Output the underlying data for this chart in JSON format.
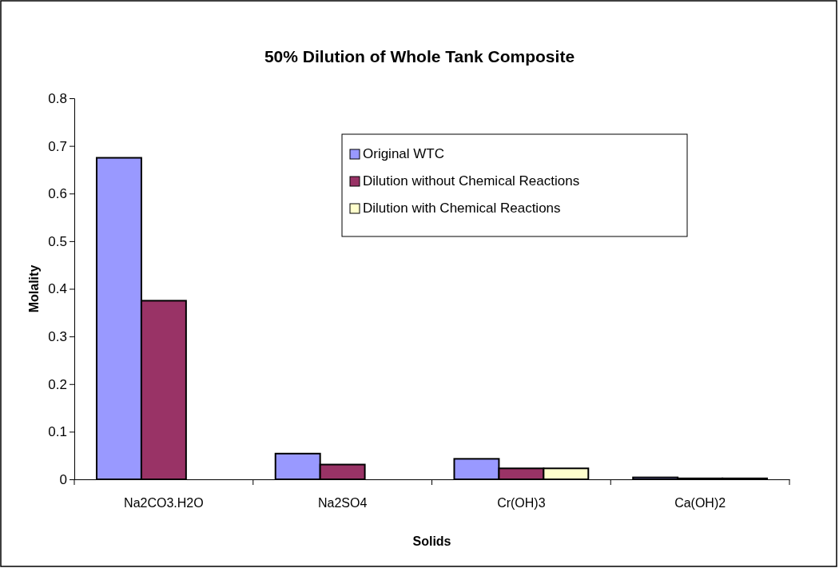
{
  "chart_data": {
    "type": "bar",
    "title": "50% Dilution of Whole Tank Composite",
    "xlabel": "Solids",
    "ylabel": "Molality",
    "categories": [
      "Na2CO3.H2O",
      "Na2SO4",
      "Cr(OH)3",
      "Ca(OH)2"
    ],
    "series": [
      {
        "name": "Original WTC",
        "color": "#9999ff",
        "values": [
          0.675,
          0.054,
          0.043,
          0.004
        ]
      },
      {
        "name": "Dilution without Chemical Reactions",
        "color": "#993366",
        "values": [
          0.375,
          0.031,
          0.023,
          0.002
        ]
      },
      {
        "name": "Dilution with Chemical Reactions",
        "color": "#ffffcc",
        "values": [
          0,
          0,
          0.023,
          0.002
        ]
      }
    ],
    "ylim": [
      0,
      0.8
    ],
    "yticks": [
      0,
      0.1,
      0.2,
      0.3,
      0.4,
      0.5,
      0.6,
      0.7,
      0.8
    ],
    "grid": false,
    "legend": "top right"
  }
}
